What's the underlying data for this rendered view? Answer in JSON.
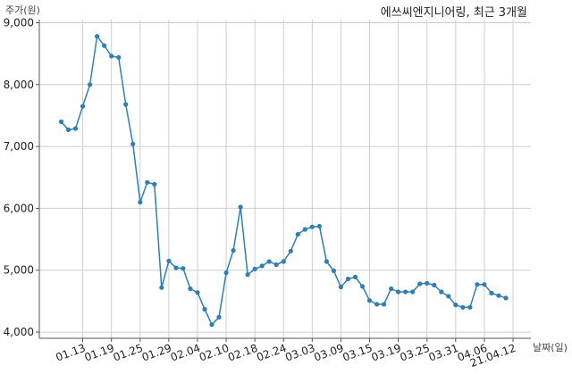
{
  "chart_data": {
    "type": "line",
    "title": "에쓰씨엔지니어링, 최근 3개월",
    "ylabel": "주가(원)",
    "xlabel": "날짜(일)",
    "ylim": [
      3900,
      9050
    ],
    "yticks": [
      4000,
      5000,
      6000,
      7000,
      8000,
      9000
    ],
    "ytick_labels": [
      "4,000",
      "5,000",
      "6,000",
      "7,000",
      "8,000",
      "9,000"
    ],
    "xtick_labels": [
      "01.13",
      "01.19",
      "01.25",
      "01.29",
      "02.04",
      "02.10",
      "02.18",
      "02.24",
      "03.03",
      "03.09",
      "03.15",
      "03.19",
      "03.25",
      "03.31",
      "04.06",
      "21.04.12"
    ],
    "xtick_indices": [
      3,
      7,
      11,
      15,
      19,
      23,
      27,
      31,
      35,
      39,
      43,
      47,
      51,
      55,
      59,
      63
    ],
    "grid": true,
    "color": "#2f7fb5",
    "series": [
      {
        "values": [
          7400,
          7270,
          7290,
          7650,
          8000,
          8780,
          8630,
          8460,
          8440,
          7680,
          7040,
          6100,
          6420,
          6390,
          4720,
          5150,
          5040,
          5030,
          4700,
          4640,
          4370,
          4120,
          4240,
          4960,
          5320,
          6020,
          4930,
          5020,
          5070,
          5140,
          5090,
          5140,
          5310,
          5580,
          5660,
          5700,
          5710,
          5140,
          4990,
          4730,
          4860,
          4890,
          4740,
          4510,
          4450,
          4450,
          4700,
          4650,
          4650,
          4650,
          4780,
          4790,
          4760,
          4650,
          4580,
          4440,
          4400,
          4400,
          4770,
          4770,
          4630,
          4590,
          4550
        ]
      }
    ]
  }
}
